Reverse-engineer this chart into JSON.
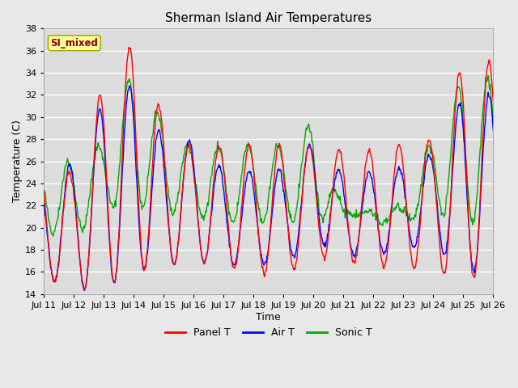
{
  "title": "Sherman Island Air Temperatures",
  "xlabel": "Time",
  "ylabel": "Temperature (C)",
  "ylim": [
    14,
    38
  ],
  "yticks": [
    14,
    16,
    18,
    20,
    22,
    24,
    26,
    28,
    30,
    32,
    34,
    36,
    38
  ],
  "xtick_labels": [
    "Jul 11",
    "Jul 12",
    "Jul 13",
    "Jul 14",
    "Jul 15",
    "Jul 16",
    "Jul 17",
    "Jul 18",
    "Jul 19",
    "Jul 20",
    "Jul 21",
    "Jul 22",
    "Jul 23",
    "Jul 24",
    "Jul 25",
    "Jul 26"
  ],
  "annotation_text": "SI_mixed",
  "annotation_color": "#8B0000",
  "annotation_bg": "#FFFFA0",
  "line_colors": [
    "#FF0000",
    "#0000FF",
    "#00AA00"
  ],
  "line_labels": [
    "Panel T",
    "Air T",
    "Sonic T"
  ],
  "plot_bg": "#DCDCDC",
  "grid_color": "#FFFFFF",
  "fig_bg": "#E8E8E8",
  "figsize": [
    6.4,
    4.8
  ],
  "dpi": 100,
  "panel_peaks": [
    25.0,
    25.0,
    33.0,
    37.0,
    30.0,
    27.0,
    27.5,
    27.5,
    27.5,
    27.5,
    27.0,
    27.0,
    27.5,
    28.0,
    35.0
  ],
  "panel_troughs": [
    15.5,
    14.5,
    14.5,
    16.0,
    16.5,
    17.0,
    16.5,
    16.0,
    15.5,
    17.5,
    17.0,
    16.5,
    16.5,
    16.0,
    15.5
  ],
  "air_peaks": [
    24.0,
    26.0,
    31.5,
    33.0,
    28.0,
    27.8,
    25.2,
    25.2,
    25.2,
    27.8,
    24.8,
    25.0,
    25.5,
    26.7,
    32.0
  ],
  "air_troughs": [
    15.5,
    14.5,
    14.5,
    16.0,
    16.5,
    17.0,
    16.5,
    16.8,
    16.5,
    19.0,
    17.5,
    17.5,
    18.0,
    18.5,
    16.0
  ],
  "sonic_peaks": [
    26.0,
    26.0,
    27.7,
    34.5,
    29.5,
    27.0,
    27.5,
    27.5,
    27.5,
    29.5,
    21.5,
    21.5,
    22.0,
    28.5,
    33.5
  ],
  "sonic_troughs": [
    19.5,
    19.0,
    21.8,
    22.0,
    21.5,
    21.0,
    20.5,
    20.5,
    20.5,
    20.5,
    21.5,
    20.5,
    20.5,
    21.5,
    20.5
  ]
}
